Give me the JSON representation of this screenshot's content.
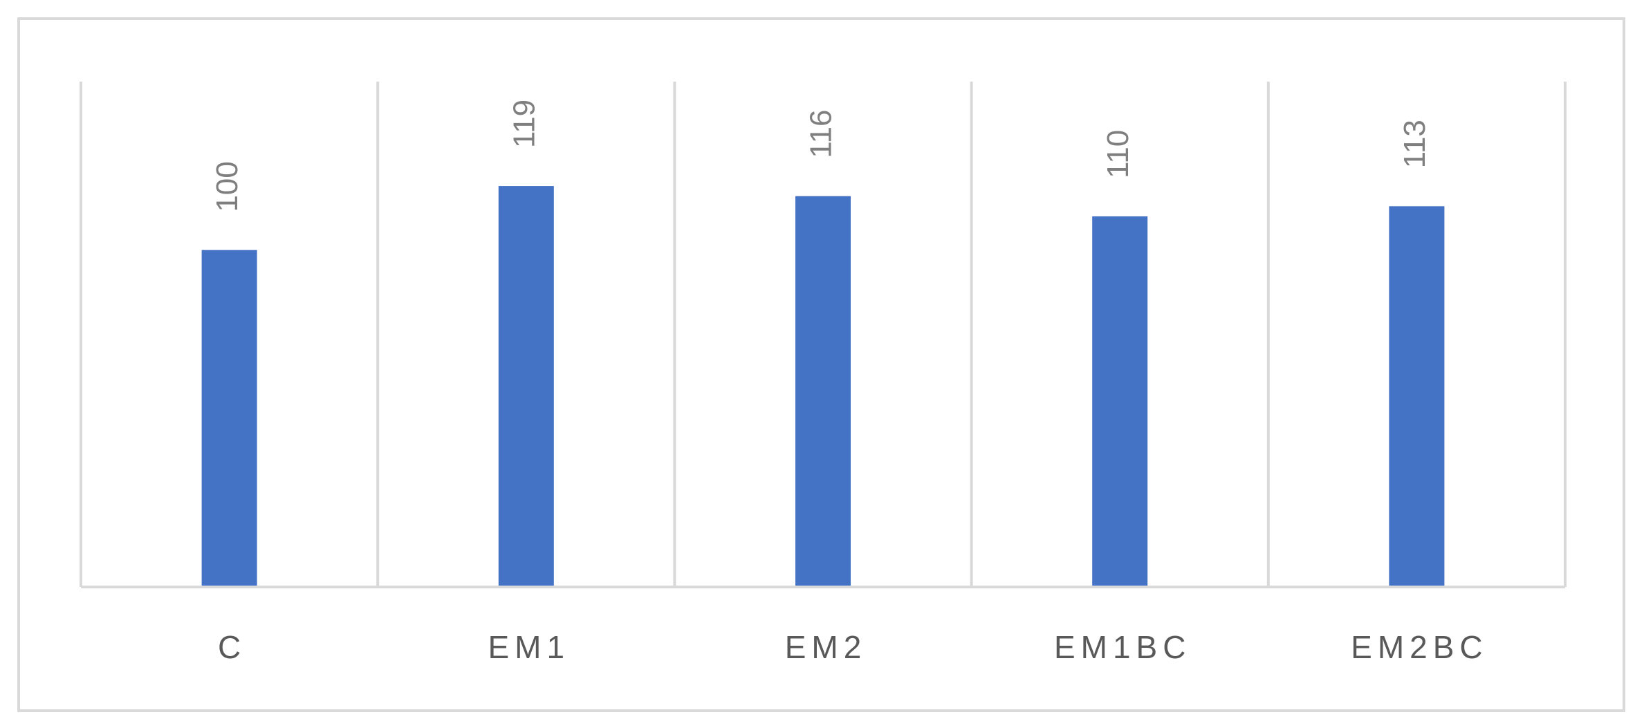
{
  "chart_data": {
    "type": "bar",
    "categories": [
      "C",
      "EM1",
      "EM2",
      "EM1BC",
      "EM2BC"
    ],
    "values": [
      100,
      119,
      116,
      110,
      113
    ],
    "color": "#4472c4",
    "ylim": [
      0,
      150
    ]
  }
}
